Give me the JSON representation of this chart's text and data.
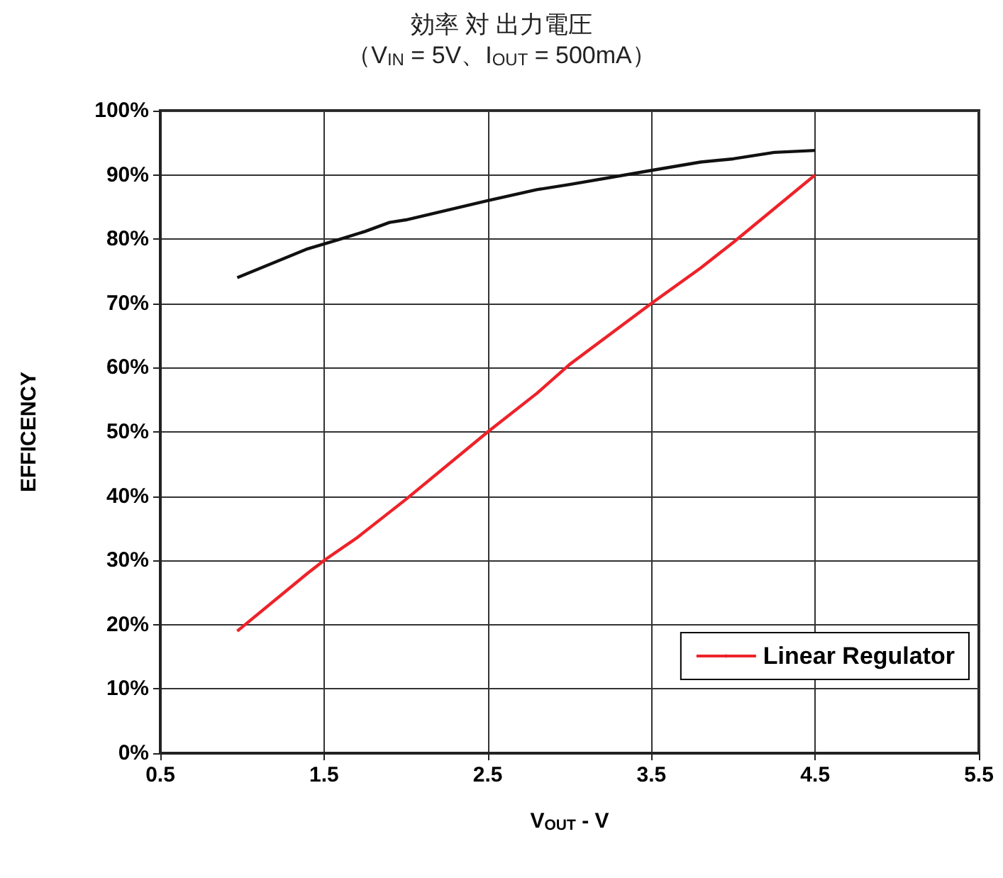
{
  "chart_data": {
    "type": "line",
    "title": "効率 対 出力電圧",
    "subtitle": "（V$_{IN}$ = 5V、I$_{OUT}$ = 500mA）",
    "xlabel": "V$_{OUT}$ - V",
    "ylabel": "EFFICENCY",
    "xlim": [
      0.5,
      5.5
    ],
    "xticks": [
      0.5,
      1.5,
      2.5,
      3.5,
      4.5,
      5.5
    ],
    "ylim": [
      0,
      100
    ],
    "yticks": [
      {
        "value": 0,
        "label": "0%"
      },
      {
        "value": 10,
        "label": "10%"
      },
      {
        "value": 20,
        "label": "20%"
      },
      {
        "value": 30,
        "label": "30%"
      },
      {
        "value": 40,
        "label": "40%"
      },
      {
        "value": 50,
        "label": "50%"
      },
      {
        "value": 60,
        "label": "60%"
      },
      {
        "value": 70,
        "label": "70%"
      },
      {
        "value": 80,
        "label": "80%"
      },
      {
        "value": 90,
        "label": "90%"
      },
      {
        "value": 100,
        "label": "100%"
      }
    ],
    "grid": true,
    "legend": "bottom right",
    "marker": "none",
    "line_style": "solid",
    "series": [
      {
        "name": "Linear Regulator",
        "color": "#ee2229",
        "x": [
          0.97,
          1.4,
          1.5,
          1.7,
          1.8,
          2,
          2.5,
          2.8,
          3,
          3.5,
          3.8,
          4,
          4.5
        ],
        "values": [
          19,
          28,
          30,
          33.5,
          35.5,
          39.5,
          50,
          56,
          60.5,
          70,
          75.5,
          79.5,
          90
        ]
      },
      {
        "color": "#111111",
        "x": [
          0.97,
          1.4,
          1.6,
          1.75,
          1.9,
          2,
          2.5,
          2.8,
          3,
          3.5,
          3.8,
          4,
          4.25,
          4.5
        ],
        "values": [
          74,
          78.5,
          80,
          81.2,
          82.6,
          83,
          86,
          87.7,
          88.5,
          90.7,
          92,
          92.5,
          93.5,
          93.8
        ]
      }
    ]
  }
}
